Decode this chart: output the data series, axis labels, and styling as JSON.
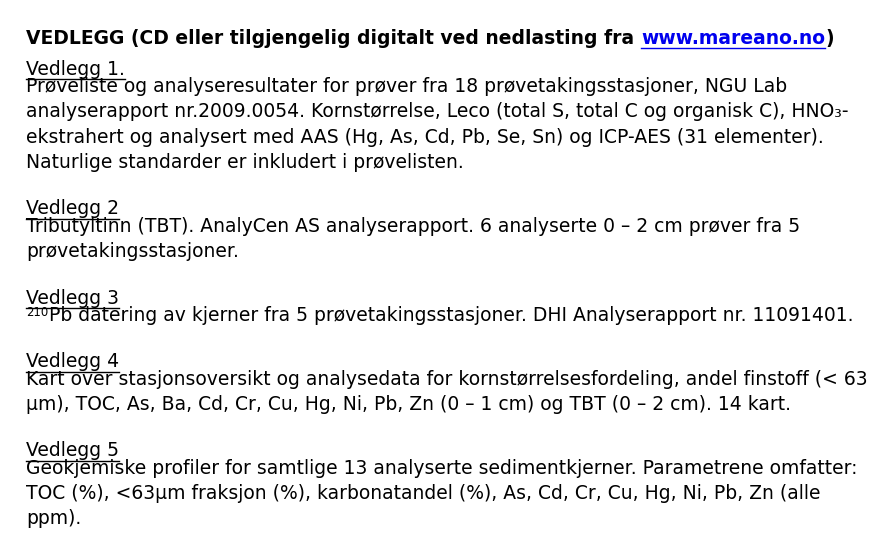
{
  "background_color": "#ffffff",
  "title_normal": "VEDLEGG (CD eller tilgjengelig digitalt ved nedlasting fra ",
  "title_link": "www.mareano.no",
  "title_end": ")",
  "link_color": "#0000EE",
  "text_color": "#000000",
  "font_size": 13.5,
  "sections": [
    {
      "heading": "Vedlegg 1.",
      "body": [
        "Prøveliste og analyseresultater for prøver fra 18 prøvetakingsstasjoner, NGU Lab",
        "analyserapport nr.2009.0054. Kornstørrelse, Leco (total S, total C og organisk C), HNO₃-",
        "ekstrahert og analysert med AAS (Hg, As, Cd, Pb, Se, Sn) og ICP-AES (31 elementer).",
        "Naturlige standarder er inkludert i prøvelisten."
      ],
      "superscript_prefix": null
    },
    {
      "heading": "Vedlegg 2",
      "body": [
        "Tributyltinn (TBT). AnalyCen AS analyserapport. 6 analyserte 0 – 2 cm prøver fra 5",
        "prøvetakingsstasjoner."
      ],
      "superscript_prefix": null
    },
    {
      "heading": "Vedlegg 3",
      "body": [
        "Pb datering av kjerner fra 5 prøvetakingsstasjoner. DHI Analyserapport nr. 11091401."
      ],
      "superscript_prefix": "210"
    },
    {
      "heading": "Vedlegg 4",
      "body": [
        "Kart over stasjonsoversikt og analysedata for kornstørrelsesfordeling, andel finstoff (< 63",
        "μm), TOC, As, Ba, Cd, Cr, Cu, Hg, Ni, Pb, Zn (0 – 1 cm) og TBT (0 – 2 cm). 14 kart."
      ],
      "superscript_prefix": null
    },
    {
      "heading": "Vedlegg 5",
      "body": [
        "Geokjemiske profiler for samtlige 13 analyserte sedimentkjerner. Parametrene omfatter:",
        "TOC (%), <63μm fraksjon (%), karbonatandel (%), As, Cd, Cr, Cu, Hg, Ni, Pb, Zn (alle",
        "ppm)."
      ],
      "superscript_prefix": null
    }
  ]
}
